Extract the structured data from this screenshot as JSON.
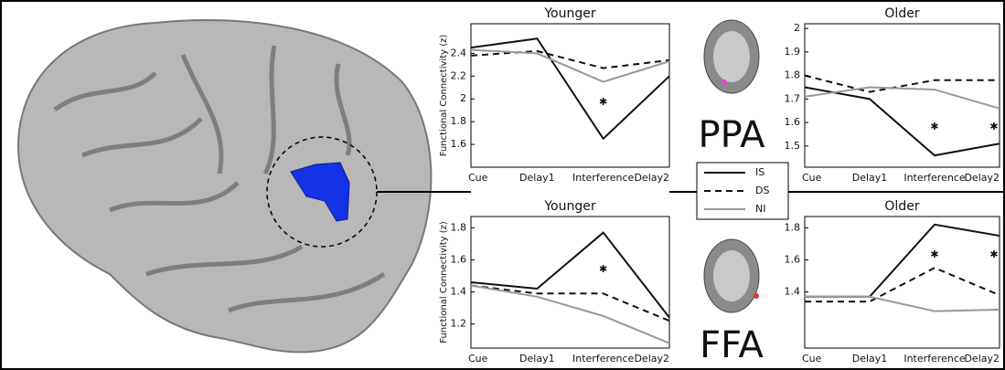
{
  "regions": [
    "PPA",
    "FFA"
  ],
  "chart_data": [
    {
      "type": "line",
      "title": "Younger",
      "y_label": "Functional Connectivity (z)",
      "categories": [
        "Cue",
        "Delay1",
        "Interference",
        "Delay2"
      ],
      "ylim": [
        1.4,
        2.66
      ],
      "yticks": [
        1.6,
        1.8,
        2,
        2.2,
        2.4
      ],
      "series": [
        {
          "name": "IS",
          "color": "#111111",
          "dash": "solid",
          "values": [
            2.45,
            2.53,
            1.65,
            2.2
          ]
        },
        {
          "name": "DS",
          "color": "#111111",
          "dash": "dashed",
          "values": [
            2.38,
            2.42,
            2.27,
            2.34
          ]
        },
        {
          "name": "NI",
          "color": "#999999",
          "dash": "solid",
          "values": [
            2.43,
            2.4,
            2.15,
            2.33
          ]
        }
      ],
      "stars": {
        "color": "#33bb33",
        "points": [
          {
            "category": "Interference",
            "value": 1.97
          }
        ]
      }
    },
    {
      "type": "line",
      "title": "Older",
      "categories": [
        "Cue",
        "Delay1",
        "Interference",
        "Delay2"
      ],
      "ylim": [
        1.41,
        2.02
      ],
      "yticks": [
        1.5,
        1.6,
        1.7,
        1.8,
        1.9,
        2
      ],
      "series": [
        {
          "name": "IS",
          "color": "#111111",
          "dash": "solid",
          "values": [
            1.75,
            1.7,
            1.46,
            1.51
          ]
        },
        {
          "name": "DS",
          "color": "#111111",
          "dash": "dashed",
          "values": [
            1.8,
            1.73,
            1.78,
            1.78
          ]
        },
        {
          "name": "NI",
          "color": "#999999",
          "dash": "solid",
          "values": [
            1.71,
            1.75,
            1.74,
            1.66
          ]
        }
      ],
      "stars": {
        "color": "#33bb33",
        "points": [
          {
            "category": "Interference",
            "value": 1.58
          },
          {
            "category": "Delay2",
            "value": 1.58
          }
        ]
      }
    },
    {
      "type": "line",
      "title": "Younger",
      "y_label": "Functional Connectivity (z)",
      "categories": [
        "Cue",
        "Delay1",
        "Interference",
        "Delay2"
      ],
      "ylim": [
        1.05,
        1.87
      ],
      "yticks": [
        1.2,
        1.4,
        1.6,
        1.8
      ],
      "series": [
        {
          "name": "IS",
          "color": "#111111",
          "dash": "solid",
          "values": [
            1.46,
            1.42,
            1.77,
            1.24
          ]
        },
        {
          "name": "DS",
          "color": "#111111",
          "dash": "dashed",
          "values": [
            1.44,
            1.39,
            1.39,
            1.22
          ]
        },
        {
          "name": "NI",
          "color": "#999999",
          "dash": "solid",
          "values": [
            1.44,
            1.37,
            1.25,
            1.08
          ]
        }
      ],
      "stars": {
        "color": "#33bb33",
        "points": [
          {
            "category": "Interference",
            "value": 1.54
          }
        ]
      }
    },
    {
      "type": "line",
      "title": "Older",
      "categories": [
        "Cue",
        "Delay1",
        "Interference",
        "Delay2"
      ],
      "ylim": [
        1.05,
        1.87
      ],
      "yticks": [
        1.4,
        1.6,
        1.8
      ],
      "series": [
        {
          "name": "IS",
          "color": "#111111",
          "dash": "solid",
          "values": [
            1.37,
            1.37,
            1.82,
            1.75
          ]
        },
        {
          "name": "DS",
          "color": "#111111",
          "dash": "dashed",
          "values": [
            1.34,
            1.34,
            1.55,
            1.38
          ]
        },
        {
          "name": "NI",
          "color": "#999999",
          "dash": "solid",
          "values": [
            1.37,
            1.37,
            1.28,
            1.29
          ]
        }
      ],
      "stars": {
        "color": "#33bb33",
        "points": [
          {
            "category": "Interference",
            "value": 1.63
          },
          {
            "category": "Delay2",
            "value": 1.63
          }
        ]
      }
    }
  ]
}
